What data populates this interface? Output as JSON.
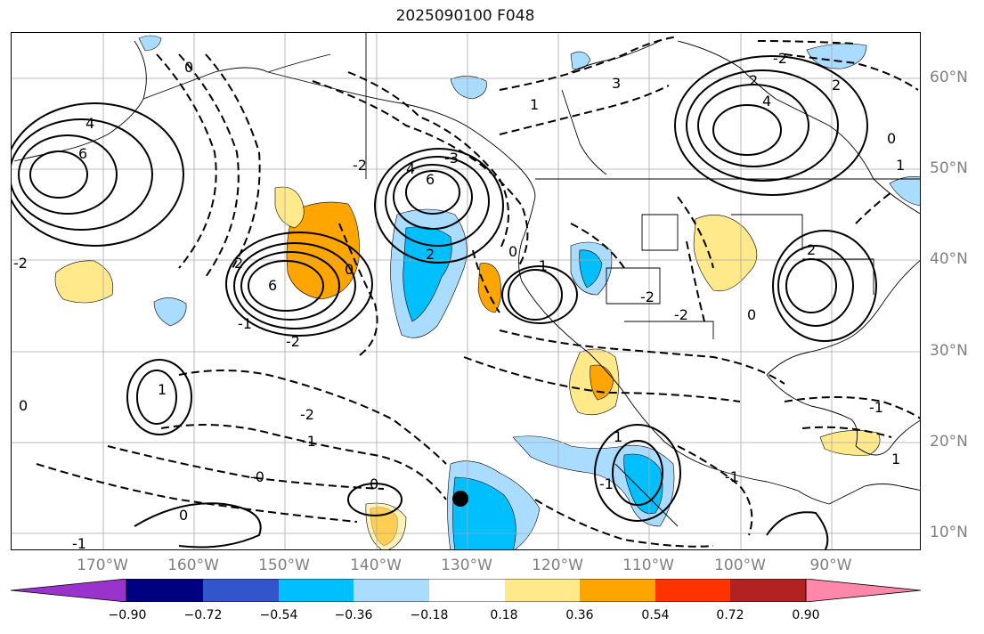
{
  "title": "2025090100 F048",
  "latitude_labels": [
    "60°N",
    "50°N",
    "40°N",
    "30°N",
    "20°N",
    "10°N"
  ],
  "longitude_labels": [
    "170°W",
    "160°W",
    "150°W",
    "140°W",
    "130°W",
    "120°W",
    "110°W",
    "100°W",
    "90°W"
  ],
  "contour_labels": [
    "0",
    "4",
    "6",
    "-2",
    "2",
    "6",
    "-1",
    "0",
    "-2",
    "4",
    "6",
    "-2",
    "2",
    "-3",
    "0",
    "-1",
    "3",
    "1",
    "4",
    "-2",
    "-2",
    "1",
    "-1",
    "-0",
    "0",
    "0",
    "2",
    "-1",
    "1",
    "2",
    "-2",
    "-1",
    "0",
    "1",
    "0",
    "-1",
    "2",
    "1",
    "-1",
    "-2",
    "0"
  ],
  "colorbar": {
    "colors": [
      "#9933cc",
      "#000080",
      "#3355cc",
      "#00bfff",
      "#aadcff",
      "#ffffff",
      "#ffe98a",
      "#ffa500",
      "#ff3300",
      "#b22222",
      "#ff88aa"
    ],
    "tick_labels": [
      "−0.90",
      "−0.72",
      "−0.54",
      "−0.36",
      "−0.18",
      "0.18",
      "0.36",
      "0.54",
      "0.72",
      "0.90"
    ]
  },
  "marker": {
    "type": "black-dot",
    "lon": "130°W",
    "lat": "14°N"
  }
}
